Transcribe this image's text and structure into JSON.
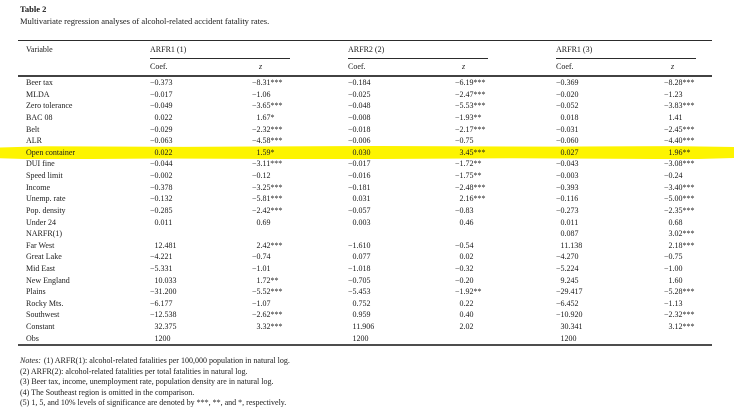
{
  "page": {
    "table_label": "Table 2",
    "table_caption": "Multivariate regression analyses of alcohol-related accident fatality rates."
  },
  "colors": {
    "highlight_yellow": "#fdf400",
    "rule_dark": "#2c2c2c",
    "text": "#1a1a1a"
  },
  "table": {
    "header": {
      "variable": "Variable",
      "groups": [
        {
          "label": "ARFR1 (1)",
          "coef": "Coef.",
          "z": "z"
        },
        {
          "label": "ARFR2 (2)",
          "coef": "Coef.",
          "z": "z"
        },
        {
          "label": "ARFR1 (3)",
          "coef": "Coef.",
          "z": "z"
        }
      ]
    },
    "rows": [
      {
        "label": "Beer tax",
        "highlight": false,
        "cells": [
          "−0.373",
          "−8.31***",
          "−0.184",
          "−6.19***",
          "−0.369",
          "−8.28***"
        ]
      },
      {
        "label": "MLDA",
        "highlight": false,
        "cells": [
          "−0.017",
          "−1.06",
          "−0.025",
          "−2.47***",
          "−0.020",
          "−1.23"
        ]
      },
      {
        "label": "Zero tolerance",
        "highlight": false,
        "cells": [
          "−0.049",
          "−3.65***",
          "−0.048",
          "−5.53***",
          "−0.052",
          "−3.83***"
        ]
      },
      {
        "label": "BAC 08",
        "highlight": false,
        "cells": [
          "0.022",
          "1.67*",
          "−0.008",
          "−1.93**",
          "0.018",
          "1.41"
        ]
      },
      {
        "label": "Belt",
        "highlight": false,
        "cells": [
          "−0.029",
          "−2.32***",
          "−0.018",
          "−2.17***",
          "−0.031",
          "−2.45***"
        ]
      },
      {
        "label": "ALR",
        "highlight": false,
        "cells": [
          "−0.063",
          "−4.58***",
          "−0.006",
          "−0.75",
          "−0.060",
          "−4.40***"
        ]
      },
      {
        "label": "Open container",
        "highlight": true,
        "cells": [
          "0.022",
          "1.59*",
          "0.030",
          "3.45***",
          "0.027",
          "1.96**"
        ]
      },
      {
        "label": "DUI fine",
        "highlight": false,
        "cells": [
          "−0.044",
          "−3.11***",
          "−0.017",
          "−1.72**",
          "−0.043",
          "−3.08***"
        ]
      },
      {
        "label": "Speed limit",
        "highlight": false,
        "cells": [
          "−0.002",
          "−0.12",
          "−0.016",
          "−1.75**",
          "−0.003",
          "−0.24"
        ]
      },
      {
        "label": "Income",
        "highlight": false,
        "cells": [
          "−0.378",
          "−3.25***",
          "−0.181",
          "−2.48***",
          "−0.393",
          "−3.40***"
        ]
      },
      {
        "label": "Unemp. rate",
        "highlight": false,
        "cells": [
          "−0.132",
          "−5.81***",
          "0.031",
          "2.16***",
          "−0.116",
          "−5.00***"
        ]
      },
      {
        "label": "Pop. density",
        "highlight": false,
        "cells": [
          "−0.285",
          "−2.42***",
          "−0.057",
          "−0.83",
          "−0.273",
          "−2.35***"
        ]
      },
      {
        "label": "Under 24",
        "highlight": false,
        "cells": [
          "0.011",
          "0.69",
          "0.003",
          "0.46",
          "0.011",
          "0.68"
        ]
      },
      {
        "label": "NARFR(1)",
        "highlight": false,
        "cells": [
          "",
          "",
          "",
          "",
          "0.087",
          "3.02***"
        ]
      },
      {
        "label": "Far West",
        "highlight": false,
        "cells": [
          "12.481",
          "2.42***",
          "−1.610",
          "−0.54",
          "11.138",
          "2.18***"
        ]
      },
      {
        "label": "Great Lake",
        "highlight": false,
        "cells": [
          "−4.221",
          "−0.74",
          "0.077",
          "0.02",
          "−4.270",
          "−0.75"
        ]
      },
      {
        "label": "Mid East",
        "highlight": false,
        "cells": [
          "−5.331",
          "−1.01",
          "−1.018",
          "−0.32",
          "−5.224",
          "−1.00"
        ]
      },
      {
        "label": "New England",
        "highlight": false,
        "cells": [
          "10.033",
          "1.72**",
          "−0.705",
          "−0.20",
          "9.245",
          "1.60"
        ]
      },
      {
        "label": "Plains",
        "highlight": false,
        "cells": [
          "−31.200",
          "−5.52***",
          "−5.453",
          "−1.92**",
          "−29.417",
          "−5.28***"
        ]
      },
      {
        "label": "Rocky Mts.",
        "highlight": false,
        "cells": [
          "−6.177",
          "−1.07",
          "0.752",
          "0.22",
          "−6.452",
          "−1.13"
        ]
      },
      {
        "label": "Southwest",
        "highlight": false,
        "cells": [
          "−12.538",
          "−2.62***",
          "0.959",
          "0.40",
          "−10.920",
          "−2.32***"
        ]
      },
      {
        "label": "Constant",
        "highlight": false,
        "cells": [
          "32.375",
          "3.32***",
          "11.906",
          "2.02",
          "30.341",
          "3.12***"
        ]
      },
      {
        "label": "Obs",
        "highlight": false,
        "cells": [
          "1200",
          "",
          "1200",
          "",
          "1200",
          ""
        ]
      }
    ]
  },
  "notes": {
    "lines": [
      {
        "prefix": "Notes:",
        "text": "(1) ARFR(1): alcohol-related fatalities per 100,000 population in natural log."
      },
      {
        "prefix": "",
        "text": "(2) ARFR(2): alcohol-related fatalities per total fatalities in natural log."
      },
      {
        "prefix": "",
        "text": "(3) Beer tax, income, unemployment rate, population density are in natural log."
      },
      {
        "prefix": "",
        "text": "(4) The Southeast region is omitted in the comparison."
      },
      {
        "prefix": "",
        "text": "(5) 1, 5, and 10% levels of significance are denoted by ***, **, and *, respectively."
      }
    ]
  }
}
